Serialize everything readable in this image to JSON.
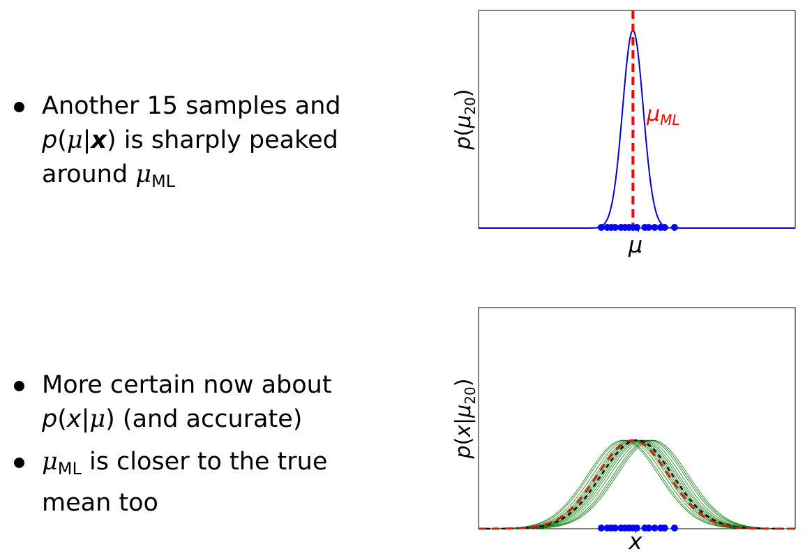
{
  "slide": {
    "bullets_top": [
      {
        "line1": "Another 15 samples and",
        "line2_p": "p",
        "line2_mu": "μ",
        "line2_x": "x",
        "line2_rest": "is sharply peaked",
        "line3_word": "around",
        "line3_mu": "μ",
        "line3_sub": "ML"
      }
    ],
    "bullets_bottom": [
      {
        "line1": "More certain now about",
        "line2_p": "p",
        "line2_x": "x",
        "line2_mu": "μ",
        "line2_rest": "(and accurate)"
      },
      {
        "mu": "μ",
        "sub": "ML",
        "line1_rest": "is closer to the true",
        "line2": "mean too"
      }
    ]
  },
  "chart_data": [
    {
      "type": "line",
      "xlabel": "μ",
      "ylabel_p": "p",
      "ylabel_mu": "μ",
      "ylabel_sub": "20",
      "annotation": "μ",
      "annotation_sub": "ML",
      "xlim": [
        -4,
        4
      ],
      "ylim": [
        0,
        1.1
      ],
      "grid": false,
      "posterior": {
        "mean": -0.1,
        "sd": 0.26,
        "peak": 1.0,
        "color": "#0000cc"
      },
      "mu_ml": -0.1,
      "mu_ml_color": "#ff0000",
      "samples": [
        -0.9,
        -0.75,
        -0.65,
        -0.55,
        -0.4,
        -0.3,
        -0.2,
        -0.1,
        0.0,
        0.2,
        0.3,
        0.45,
        0.6,
        0.7,
        0.95
      ],
      "sample_color": "#0000ff"
    },
    {
      "type": "line",
      "xlabel": "x",
      "ylabel_p": "p",
      "ylabel_x": "x",
      "ylabel_mu": "μ",
      "ylabel_sub": "20",
      "xlim": [
        -4,
        4
      ],
      "ylim": [
        0,
        1
      ],
      "grid": false,
      "gaussian_sd": 0.9,
      "gaussian_peak": 0.4,
      "sampled_means": [
        -0.3,
        -0.22,
        -0.15,
        -0.1,
        -0.05,
        0.0,
        0.05,
        0.1,
        0.15,
        0.22,
        0.3,
        0.35,
        -0.35,
        0.4
      ],
      "sample_curve_color": "#007700",
      "true_mean": 0.0,
      "true_color": "#000000",
      "ml_mean": -0.1,
      "ml_color": "#cc2200",
      "samples": [
        -0.9,
        -0.75,
        -0.65,
        -0.55,
        -0.4,
        -0.3,
        -0.2,
        -0.1,
        0.0,
        0.2,
        0.3,
        0.45,
        0.6,
        0.7,
        0.95
      ],
      "sample_color": "#0000ff"
    }
  ]
}
